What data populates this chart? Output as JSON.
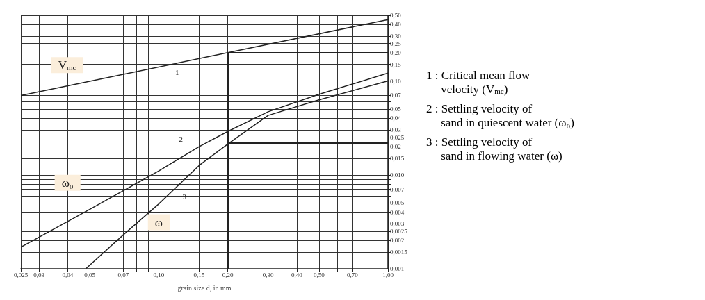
{
  "chart_data": {
    "type": "line",
    "xlabel": "grain size d, in mm",
    "log": "xy",
    "grid": true,
    "legend": false,
    "marker": "none",
    "line_style": "solid",
    "xlim": [
      0.025,
      1.0
    ],
    "ylim": [
      0.001,
      0.5
    ],
    "xticks": [
      {
        "value": 0.025,
        "label": "0,025"
      },
      {
        "value": 0.03,
        "label": "0,03"
      },
      {
        "value": 0.04,
        "label": "0,04"
      },
      {
        "value": 0.05,
        "label": "0,05"
      },
      {
        "value": 0.06,
        "label": null
      },
      {
        "value": 0.07,
        "label": "0,07"
      },
      {
        "value": 0.08,
        "label": null
      },
      {
        "value": 0.09,
        "label": null
      },
      {
        "value": 0.1,
        "label": "0,10"
      },
      {
        "value": 0.15,
        "label": "0,15"
      },
      {
        "value": 0.2,
        "label": "0,20"
      },
      {
        "value": 0.25,
        "label": null
      },
      {
        "value": 0.3,
        "label": "0,30"
      },
      {
        "value": 0.4,
        "label": "0,40"
      },
      {
        "value": 0.5,
        "label": "0,50"
      },
      {
        "value": 0.6,
        "label": null
      },
      {
        "value": 0.7,
        "label": "0,70"
      },
      {
        "value": 0.8,
        "label": null
      },
      {
        "value": 0.9,
        "label": null
      },
      {
        "value": 1.0,
        "label": "1,00"
      }
    ],
    "yticks": [
      {
        "value": 0.001,
        "label": "0,001"
      },
      {
        "value": 0.0015,
        "label": "0,0015"
      },
      {
        "value": 0.002,
        "label": "0,002"
      },
      {
        "value": 0.0025,
        "label": "0,0025"
      },
      {
        "value": 0.003,
        "label": "0,003"
      },
      {
        "value": 0.004,
        "label": "0,004"
      },
      {
        "value": 0.005,
        "label": "0,005"
      },
      {
        "value": 0.006,
        "label": null
      },
      {
        "value": 0.007,
        "label": "0,007"
      },
      {
        "value": 0.008,
        "label": null
      },
      {
        "value": 0.009,
        "label": null
      },
      {
        "value": 0.01,
        "label": "0,010"
      },
      {
        "value": 0.015,
        "label": "0,015"
      },
      {
        "value": 0.02,
        "label": "0,02"
      },
      {
        "value": 0.025,
        "label": "0,025"
      },
      {
        "value": 0.03,
        "label": "0,03"
      },
      {
        "value": 0.04,
        "label": "0,04"
      },
      {
        "value": 0.05,
        "label": "0,05"
      },
      {
        "value": 0.06,
        "label": null
      },
      {
        "value": 0.07,
        "label": "0,07"
      },
      {
        "value": 0.08,
        "label": null
      },
      {
        "value": 0.09,
        "label": null
      },
      {
        "value": 0.1,
        "label": "0,10"
      },
      {
        "value": 0.15,
        "label": "0,15"
      },
      {
        "value": 0.2,
        "label": "0,20"
      },
      {
        "value": 0.25,
        "label": "0,25"
      },
      {
        "value": 0.3,
        "label": "0,30"
      },
      {
        "value": 0.4,
        "label": "0,40"
      },
      {
        "value": 0.5,
        "label": "0,50"
      }
    ],
    "series": [
      {
        "name": "V$_{mc}$",
        "color": "#222222",
        "x": [
          0.025,
          0.2,
          1.0
        ],
        "values": [
          0.07,
          0.2,
          0.45
        ]
      },
      {
        "name": "ω₀",
        "color": "#222222",
        "x": [
          0.025,
          0.05,
          0.1,
          0.15,
          0.2,
          0.3,
          0.5,
          1.0
        ],
        "values": [
          0.0017,
          0.0043,
          0.011,
          0.02,
          0.029,
          0.047,
          0.072,
          0.121
        ]
      },
      {
        "name": "ω",
        "color": "#222222",
        "x": [
          0.048,
          0.07,
          0.1,
          0.15,
          0.2,
          0.3,
          0.5,
          1.0
        ],
        "values": [
          0.001,
          0.0023,
          0.0049,
          0.0126,
          0.0213,
          0.043,
          0.063,
          0.1
        ]
      }
    ],
    "ref_lines": [
      {
        "axis": "x",
        "value": 0.2
      },
      {
        "axis": "y",
        "value": 0.2
      },
      {
        "axis": "y",
        "value": 0.022
      }
    ],
    "annotations": [
      "1",
      "2",
      "3",
      "1 : Critical mean flow velocity (V$_{mc}$)",
      "2 : Settling velocity of sand in quiescent water (ω₀)",
      "3 : Settling velocity of sand in flowing water (ω)"
    ]
  }
}
